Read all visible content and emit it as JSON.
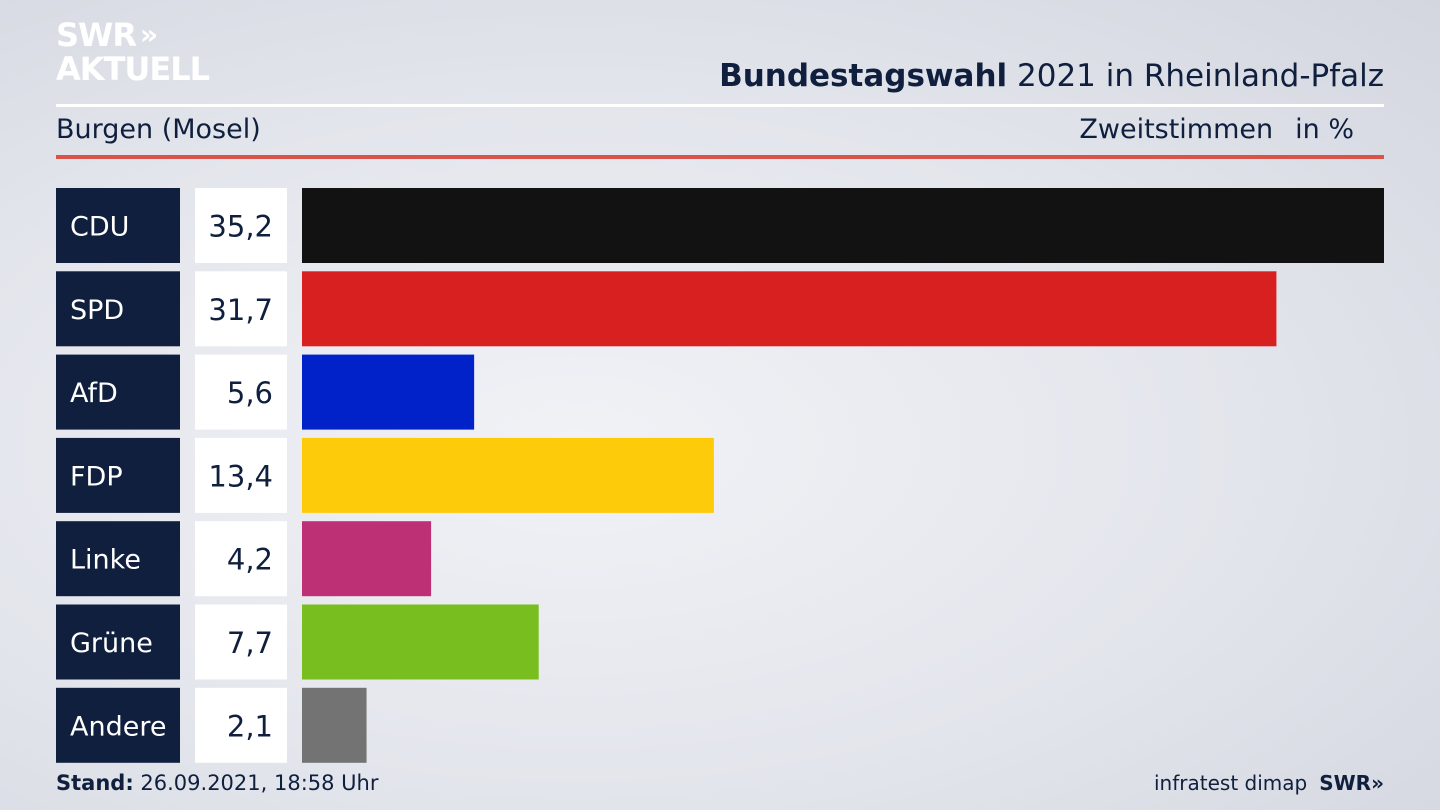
{
  "logo": {
    "line1": "SWR",
    "arrows": "»",
    "line2": "AKTUELL"
  },
  "header": {
    "title_bold": "Bundestagswahl",
    "title_rest": " 2021 in Rheinland-Pfalz",
    "region": "Burgen (Mosel)",
    "measure": "Zweitstimmen",
    "unit": "in %"
  },
  "footer": {
    "stand_label": "Stand:",
    "stand_value": " 26.09.2021, 18:58 Uhr",
    "source": "infratest dimap",
    "brand": "SWR»"
  },
  "chart_data": {
    "type": "bar",
    "orientation": "horizontal",
    "categories": [
      "CDU",
      "SPD",
      "AfD",
      "FDP",
      "Linke",
      "Grüne",
      "Andere"
    ],
    "values": [
      35.2,
      31.7,
      5.6,
      13.4,
      4.2,
      7.7,
      2.1
    ],
    "value_labels": [
      "35,2",
      "31,7",
      "5,6",
      "13,4",
      "4,2",
      "7,7",
      "2,1"
    ],
    "colors": [
      "#121212",
      "#d92020",
      "#0022c8",
      "#fecb0a",
      "#be3075",
      "#78be1e",
      "#737373"
    ],
    "xlim": [
      0,
      35.2
    ],
    "grid": false,
    "legend": "none"
  }
}
